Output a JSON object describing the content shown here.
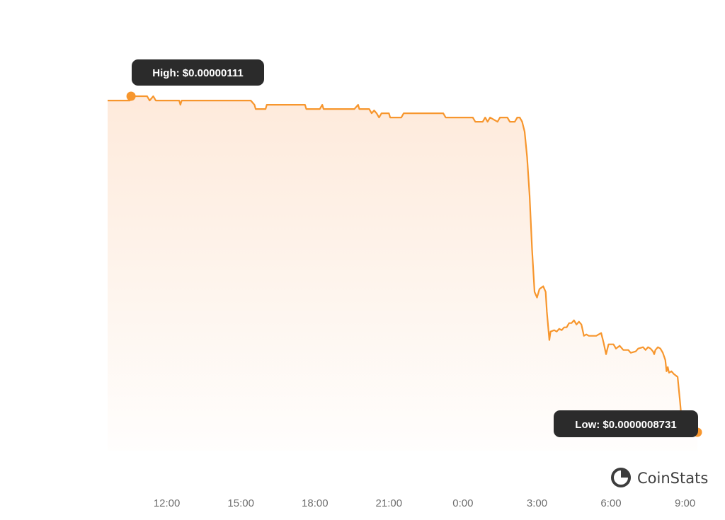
{
  "chart_data": {
    "type": "area",
    "title": "",
    "xlabel": "",
    "ylabel": "",
    "x_ticks": [
      "12:00",
      "15:00",
      "18:00",
      "21:00",
      "0:00",
      "3:00",
      "6:00",
      "9:00"
    ],
    "x_range_hours": [
      9.6,
      33.5
    ],
    "y_range": [
      8.6e-07,
      1.123e-06
    ],
    "grid": false,
    "legend": "none",
    "colors": {
      "line": "#f7962d",
      "fill_top": "#fde3cf",
      "tooltip_bg": "#2b2b2b"
    },
    "annotations": {
      "high_label": "High: $0.00000111",
      "high_value": 1.11e-06,
      "low_label": "Low: $0.0000008731",
      "low_value": 8.731e-07
    },
    "brand": {
      "name": "CoinStats",
      "icon": "coinstats-logo-icon"
    },
    "series": [
      {
        "points": [
          [
            9.6,
            1.107e-06
          ],
          [
            10.5,
            1.107e-06
          ],
          [
            10.55,
            1.11e-06
          ],
          [
            11.2,
            1.11e-06
          ],
          [
            11.3,
            1.107e-06
          ],
          [
            11.45,
            1.11e-06
          ],
          [
            11.55,
            1.107e-06
          ],
          [
            12.5,
            1.107e-06
          ],
          [
            12.55,
            1.104e-06
          ],
          [
            12.6,
            1.107e-06
          ],
          [
            15.4,
            1.107e-06
          ],
          [
            15.55,
            1.104e-06
          ],
          [
            15.6,
            1.101e-06
          ],
          [
            16.0,
            1.101e-06
          ],
          [
            16.05,
            1.104e-06
          ],
          [
            17.6,
            1.104e-06
          ],
          [
            17.65,
            1.101e-06
          ],
          [
            18.2,
            1.101e-06
          ],
          [
            18.3,
            1.104e-06
          ],
          [
            18.35,
            1.101e-06
          ],
          [
            19.6,
            1.101e-06
          ],
          [
            19.75,
            1.104e-06
          ],
          [
            19.8,
            1.101e-06
          ],
          [
            20.2,
            1.101e-06
          ],
          [
            20.3,
            1.098e-06
          ],
          [
            20.4,
            1.1e-06
          ],
          [
            20.5,
            1.098e-06
          ],
          [
            20.6,
            1.095e-06
          ],
          [
            20.7,
            1.098e-06
          ],
          [
            21.0,
            1.098e-06
          ],
          [
            21.05,
            1.095e-06
          ],
          [
            21.5,
            1.095e-06
          ],
          [
            21.6,
            1.098e-06
          ],
          [
            23.2,
            1.098e-06
          ],
          [
            23.3,
            1.095e-06
          ],
          [
            24.4,
            1.095e-06
          ],
          [
            24.5,
            1.092e-06
          ],
          [
            24.8,
            1.092e-06
          ],
          [
            24.9,
            1.095e-06
          ],
          [
            25.0,
            1.092e-06
          ],
          [
            25.1,
            1.095e-06
          ],
          [
            25.4,
            1.092e-06
          ],
          [
            25.5,
            1.095e-06
          ],
          [
            25.8,
            1.095e-06
          ],
          [
            25.9,
            1.092e-06
          ],
          [
            26.1,
            1.092e-06
          ],
          [
            26.2,
            1.095e-06
          ],
          [
            26.3,
            1.095e-06
          ],
          [
            26.4,
            1.092e-06
          ],
          [
            26.5,
            1.085e-06
          ],
          [
            26.6,
            1.067e-06
          ],
          [
            26.7,
            1.04e-06
          ],
          [
            26.8,
            1.002e-06
          ],
          [
            26.9,
            9.72e-07
          ],
          [
            27.0,
            9.68e-07
          ],
          [
            27.1,
            9.74e-07
          ],
          [
            27.25,
            9.76e-07
          ],
          [
            27.35,
            9.72e-07
          ],
          [
            27.4,
            9.58e-07
          ],
          [
            27.5,
            9.38e-07
          ],
          [
            27.55,
            9.44e-07
          ],
          [
            27.7,
            9.45e-07
          ],
          [
            27.8,
            9.44e-07
          ],
          [
            27.9,
            9.46e-07
          ],
          [
            28.0,
            9.45e-07
          ],
          [
            28.1,
            9.47e-07
          ],
          [
            28.2,
            9.47e-07
          ],
          [
            28.3,
            9.5e-07
          ],
          [
            28.4,
            9.5e-07
          ],
          [
            28.5,
            9.52e-07
          ],
          [
            28.6,
            9.49e-07
          ],
          [
            28.7,
            9.51e-07
          ],
          [
            28.8,
            9.49e-07
          ],
          [
            28.9,
            9.41e-07
          ],
          [
            29.0,
            9.42e-07
          ],
          [
            29.1,
            9.41e-07
          ],
          [
            29.4,
            9.41e-07
          ],
          [
            29.6,
            9.43e-07
          ],
          [
            29.7,
            9.36e-07
          ],
          [
            29.8,
            9.28e-07
          ],
          [
            29.9,
            9.35e-07
          ],
          [
            30.1,
            9.35e-07
          ],
          [
            30.2,
            9.32e-07
          ],
          [
            30.35,
            9.34e-07
          ],
          [
            30.5,
            9.31e-07
          ],
          [
            30.7,
            9.31e-07
          ],
          [
            30.8,
            9.29e-07
          ],
          [
            31.0,
            9.3e-07
          ],
          [
            31.1,
            9.32e-07
          ],
          [
            31.3,
            9.33e-07
          ],
          [
            31.4,
            9.31e-07
          ],
          [
            31.5,
            9.33e-07
          ],
          [
            31.6,
            9.32e-07
          ],
          [
            31.7,
            9.3e-07
          ],
          [
            31.75,
            9.28e-07
          ],
          [
            31.8,
            9.31e-07
          ],
          [
            31.9,
            9.33e-07
          ],
          [
            32.0,
            9.32e-07
          ],
          [
            32.1,
            9.29e-07
          ],
          [
            32.2,
            9.24e-07
          ],
          [
            32.25,
            9.16e-07
          ],
          [
            32.3,
            9.19e-07
          ],
          [
            32.35,
            9.15e-07
          ],
          [
            32.45,
            9.16e-07
          ],
          [
            32.55,
            9.14e-07
          ],
          [
            32.7,
            9.12e-07
          ],
          [
            32.8,
            8.94e-07
          ],
          [
            32.9,
            8.74e-07
          ],
          [
            33.5,
            8.73e-07
          ]
        ]
      }
    ]
  }
}
